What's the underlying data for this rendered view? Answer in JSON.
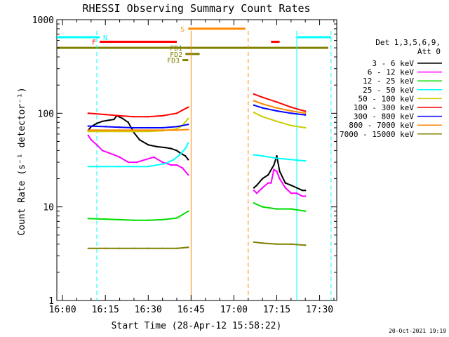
{
  "chart_data": {
    "type": "line",
    "title": "RHESSI Observing Summary Count Rates",
    "xlabel": "Start Time (28-Apr-12 15:58:22)",
    "ylabel": "Count Rate (s⁻¹ detector⁻¹)",
    "y_scale": "log",
    "xlim": [
      "15:58",
      "17:36"
    ],
    "ylim": [
      1,
      1000
    ],
    "x_ticks": [
      "16:00",
      "16:15",
      "16:30",
      "16:45",
      "17:00",
      "17:15",
      "17:30"
    ],
    "y_ticks": [
      "1",
      "10",
      "100",
      "1000"
    ],
    "grid": false,
    "legend_position": "right",
    "legend_header": [
      "Det 1,3,5,6,9,",
      "Att 0"
    ],
    "footer_timestamp": "20-Oct-2021 19:19",
    "series": [
      {
        "name": "3 - 6 keV",
        "color": "#000000",
        "segment1": {
          "x": [
            "16:09",
            "16:10",
            "16:12",
            "16:14",
            "16:16",
            "16:18",
            "16:19",
            "16:21",
            "16:23",
            "16:25",
            "16:27",
            "16:30",
            "16:33",
            "16:36",
            "16:38",
            "16:40",
            "16:41",
            "16:43",
            "16:44"
          ],
          "values": [
            66,
            72,
            78,
            82,
            84,
            86,
            94,
            88,
            80,
            62,
            52,
            46,
            44,
            43,
            42,
            40,
            38,
            35,
            32
          ]
        },
        "segment2": {
          "x": [
            "17:07",
            "17:08",
            "17:10",
            "17:12",
            "17:14",
            "17:15",
            "17:16",
            "17:18",
            "17:20",
            "17:22",
            "17:24",
            "17:25"
          ],
          "values": [
            16,
            17,
            20,
            22,
            28,
            35,
            24,
            18,
            17,
            16,
            15,
            15
          ]
        }
      },
      {
        "name": "6 - 12 keV",
        "color": "#ff00ff",
        "segment1": {
          "x": [
            "16:09",
            "16:10",
            "16:12",
            "16:14",
            "16:16",
            "16:18",
            "16:20",
            "16:23",
            "16:26",
            "16:29",
            "16:32",
            "16:35",
            "16:38",
            "16:40",
            "16:42",
            "16:44"
          ],
          "values": [
            58,
            52,
            46,
            40,
            38,
            36,
            34,
            30,
            30,
            32,
            34,
            30,
            28,
            28,
            26,
            22
          ]
        },
        "segment2": {
          "x": [
            "17:07",
            "17:08",
            "17:10",
            "17:12",
            "17:13",
            "17:14",
            "17:15",
            "17:16",
            "17:18",
            "17:20",
            "17:22",
            "17:24",
            "17:25"
          ],
          "values": [
            15,
            14,
            16,
            18,
            18,
            25,
            24,
            20,
            16,
            14,
            14,
            13,
            13
          ]
        }
      },
      {
        "name": "12 - 25 keV",
        "color": "#00dd00",
        "segment1": {
          "x": [
            "16:09",
            "16:15",
            "16:20",
            "16:25",
            "16:30",
            "16:35",
            "16:40",
            "16:44"
          ],
          "values": [
            7.5,
            7.4,
            7.3,
            7.2,
            7.2,
            7.3,
            7.6,
            9
          ]
        },
        "segment2": {
          "x": [
            "17:07",
            "17:10",
            "17:15",
            "17:20",
            "17:25"
          ],
          "values": [
            11,
            10,
            9.5,
            9.5,
            9
          ]
        }
      },
      {
        "name": "25 - 50 keV",
        "color": "#00ffff",
        "segment1": {
          "x": [
            "16:09",
            "16:15",
            "16:20",
            "16:25",
            "16:30",
            "16:33",
            "16:36",
            "16:39",
            "16:41",
            "16:43",
            "16:44"
          ],
          "values": [
            27,
            27,
            27,
            27,
            27,
            28,
            29,
            32,
            36,
            42,
            48
          ]
        },
        "segment2": {
          "x": [
            "17:07",
            "17:10",
            "17:15",
            "17:20",
            "17:25"
          ],
          "values": [
            36,
            35,
            33,
            32,
            31
          ]
        }
      },
      {
        "name": "50 - 100 keV",
        "color": "#cccc00",
        "segment1": {
          "x": [
            "16:09",
            "16:15",
            "16:20",
            "16:25",
            "16:30",
            "16:35",
            "16:40",
            "16:42",
            "16:44"
          ],
          "values": [
            64,
            64,
            64,
            64,
            64,
            65,
            68,
            74,
            88
          ]
        },
        "segment2": {
          "x": [
            "17:07",
            "17:10",
            "17:15",
            "17:20",
            "17:25"
          ],
          "values": [
            102,
            92,
            82,
            74,
            70
          ]
        }
      },
      {
        "name": "100 - 300 keV",
        "color": "#ff0000",
        "segment1": {
          "x": [
            "16:09",
            "16:15",
            "16:20",
            "16:25",
            "16:30",
            "16:35",
            "16:40",
            "16:42",
            "16:44"
          ],
          "values": [
            100,
            97,
            94,
            92,
            92,
            94,
            100,
            108,
            116
          ]
        },
        "segment2": {
          "x": [
            "17:07",
            "17:10",
            "17:15",
            "17:20",
            "17:25"
          ],
          "values": [
            160,
            148,
            132,
            116,
            105
          ]
        }
      },
      {
        "name": "300 - 800 keV",
        "color": "#0000ff",
        "segment1": {
          "x": [
            "16:09",
            "16:15",
            "16:20",
            "16:25",
            "16:30",
            "16:35",
            "16:40",
            "16:44"
          ],
          "values": [
            73,
            72,
            71,
            70,
            70,
            70,
            72,
            76
          ]
        },
        "segment2": {
          "x": [
            "17:07",
            "17:10",
            "17:15",
            "17:20",
            "17:25"
          ],
          "values": [
            122,
            114,
            106,
            100,
            96
          ]
        }
      },
      {
        "name": "800 - 7000 keV",
        "color": "#ff8800",
        "segment1": {
          "x": [
            "16:09",
            "16:15",
            "16:20",
            "16:25",
            "16:30",
            "16:35",
            "16:40",
            "16:44"
          ],
          "values": [
            66,
            66,
            66,
            66,
            66,
            66,
            66,
            67
          ]
        },
        "segment2": {
          "x": [
            "17:07",
            "17:10",
            "17:15",
            "17:20",
            "17:25"
          ],
          "values": [
            136,
            126,
            114,
            106,
            100
          ]
        }
      },
      {
        "name": "7000 - 15000 keV",
        "color": "#808000",
        "segment1": {
          "x": [
            "16:09",
            "16:15",
            "16:20",
            "16:25",
            "16:30",
            "16:35",
            "16:40",
            "16:44"
          ],
          "values": [
            3.6,
            3.6,
            3.6,
            3.6,
            3.6,
            3.6,
            3.6,
            3.7
          ]
        },
        "segment2": {
          "x": [
            "17:07",
            "17:10",
            "17:15",
            "17:20",
            "17:25"
          ],
          "values": [
            4.2,
            4.1,
            4.0,
            4.0,
            3.9
          ]
        }
      }
    ],
    "state_bars": [
      {
        "label": "N",
        "color": "#00ffff",
        "level": 650,
        "ranges": [
          [
            "15:58",
            "16:13"
          ],
          [
            "17:22",
            "17:34"
          ]
        ]
      },
      {
        "label": "F",
        "color": "#ff0000",
        "level": 580,
        "ranges": [
          [
            "16:13",
            "16:40"
          ],
          [
            "17:13",
            "17:16"
          ]
        ]
      },
      {
        "label": "S",
        "color": "#ff8800",
        "level": 800,
        "ranges": [
          [
            "16:44",
            "17:04"
          ]
        ]
      },
      {
        "label": "",
        "color": "#808000",
        "level": 500,
        "ranges": [
          [
            "15:58",
            "17:33"
          ]
        ]
      },
      {
        "label": "FD1",
        "color": "#808000",
        "level": 500,
        "ranges": [
          [
            "16:43",
            "16:45"
          ]
        ]
      },
      {
        "label": "FD2",
        "color": "#808000",
        "level": 430,
        "ranges": [
          [
            "16:43",
            "16:48"
          ]
        ]
      },
      {
        "label": "FD3",
        "color": "#808000",
        "level": 370,
        "ranges": [
          [
            "16:42",
            "16:44"
          ]
        ]
      }
    ],
    "vertical_markers": [
      {
        "x": "16:12",
        "color": "#00ffff",
        "style": "dashed"
      },
      {
        "x": "16:45",
        "color": "#ff8800",
        "style": "solid"
      },
      {
        "x": "17:05",
        "color": "#ff8800",
        "style": "dashed"
      },
      {
        "x": "17:22",
        "color": "#00ffff",
        "style": "solid"
      },
      {
        "x": "17:34",
        "color": "#00ffff",
        "style": "dashed"
      }
    ]
  }
}
